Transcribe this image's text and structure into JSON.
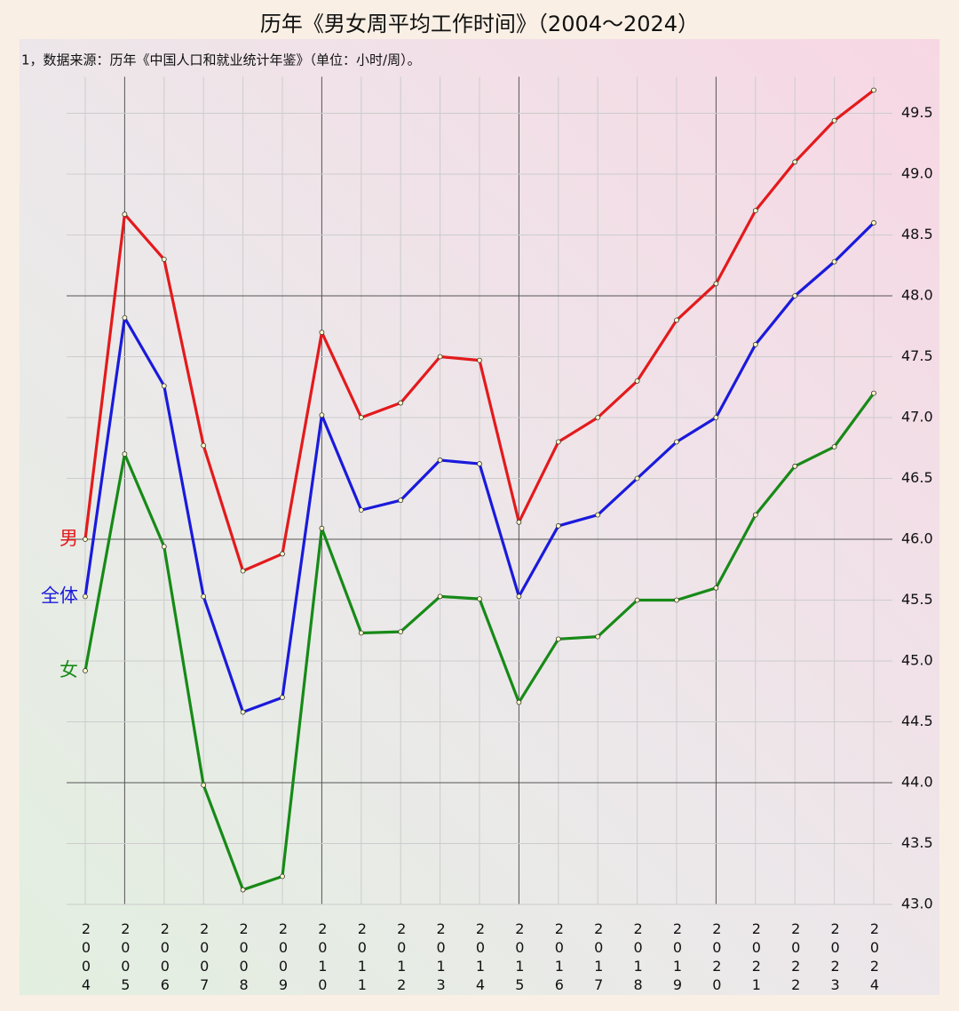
{
  "chart_data": {
    "type": "line",
    "title": "历年《男女周平均工作时间》（2004～2024）",
    "subtitle": "1，数据来源：历年《中国人口和就业统计年鉴》（单位：小时/周）。",
    "categories": [
      "2004",
      "2005",
      "2006",
      "2007",
      "2008",
      "2009",
      "2010",
      "2011",
      "2012",
      "2013",
      "2014",
      "2015",
      "2016",
      "2017",
      "2018",
      "2019",
      "2020",
      "2021",
      "2022",
      "2023",
      "2024"
    ],
    "series": [
      {
        "name": "男",
        "color": "#e31a1c",
        "values": [
          46.0,
          48.67,
          48.3,
          46.77,
          45.74,
          45.88,
          47.7,
          47.0,
          47.12,
          47.5,
          47.47,
          46.14,
          46.8,
          47.0,
          47.3,
          47.8,
          48.1,
          48.7,
          49.1,
          49.44,
          49.69
        ]
      },
      {
        "name": "全体",
        "color": "#1a1adc",
        "values": [
          45.53,
          47.82,
          47.26,
          45.53,
          44.58,
          44.7,
          47.02,
          46.24,
          46.32,
          46.65,
          46.62,
          45.53,
          46.11,
          46.2,
          46.5,
          46.8,
          47.0,
          47.6,
          48.0,
          48.28,
          48.6
        ]
      },
      {
        "name": "女",
        "color": "#178a17",
        "values": [
          44.92,
          46.7,
          45.94,
          43.98,
          43.12,
          43.23,
          46.09,
          45.23,
          45.24,
          45.53,
          45.51,
          44.66,
          45.18,
          45.2,
          45.5,
          45.5,
          45.6,
          46.2,
          46.6,
          46.76,
          47.2
        ]
      }
    ],
    "ylim": [
      43,
      49.8
    ],
    "yticks": [
      {
        "value": 43,
        "label": "43.0"
      },
      43.5,
      {
        "value": 44,
        "label": "44.0"
      },
      44.5,
      {
        "value": 45,
        "label": "45.0"
      },
      45.5,
      {
        "value": 46,
        "label": "46.0"
      },
      46.5,
      {
        "value": 47,
        "label": "47.0"
      },
      47.5,
      {
        "value": 48,
        "label": "48.0"
      },
      48.5,
      {
        "value": 49,
        "label": "49.0"
      },
      49.5
    ],
    "grid": true
  }
}
